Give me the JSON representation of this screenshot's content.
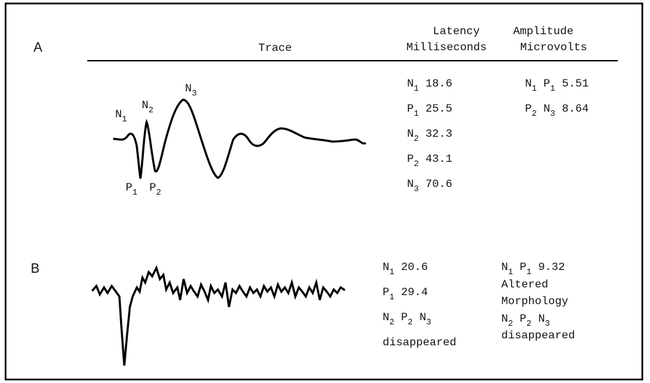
{
  "header": {
    "trace": "Trace",
    "latency": [
      "Latency",
      "Milliseconds"
    ],
    "amplitude": [
      "Amplitude",
      "Microvolts"
    ]
  },
  "panels": [
    {
      "label": "A",
      "trace_labels": [
        {
          "p": "N",
          "s": "1"
        },
        {
          "p": "N",
          "s": "2"
        },
        {
          "p": "N",
          "s": "3"
        },
        {
          "p": "P",
          "s": "1"
        },
        {
          "p": "P",
          "s": "2"
        }
      ],
      "latency": [
        {
          "peaks": [
            {
              "p": "N",
              "s": "1"
            }
          ],
          "value": 18.6
        },
        {
          "peaks": [
            {
              "p": "P",
              "s": "1"
            }
          ],
          "value": 25.5
        },
        {
          "peaks": [
            {
              "p": "N",
              "s": "2"
            }
          ],
          "value": 32.3
        },
        {
          "peaks": [
            {
              "p": "P",
              "s": "2"
            }
          ],
          "value": 43.1
        },
        {
          "peaks": [
            {
              "p": "N",
              "s": "3"
            }
          ],
          "value": 70.6
        }
      ],
      "amplitude": [
        {
          "peaks": [
            {
              "p": "N",
              "s": "1"
            },
            {
              "p": "P",
              "s": "1"
            }
          ],
          "value": 5.51
        },
        {
          "peaks": [
            {
              "p": "P",
              "s": "2"
            },
            {
              "p": "N",
              "s": "3"
            }
          ],
          "value": 8.64
        }
      ]
    },
    {
      "label": "B",
      "latency": [
        {
          "peaks": [
            {
              "p": "N",
              "s": "1"
            }
          ],
          "value": 20.6
        },
        {
          "peaks": [
            {
              "p": "P",
              "s": "1"
            }
          ],
          "value": 29.4
        },
        {
          "peaks": [
            {
              "p": "N",
              "s": "2"
            },
            {
              "p": "P",
              "s": "2"
            },
            {
              "p": "N",
              "s": "3"
            }
          ]
        },
        {
          "note": "disappeared"
        }
      ],
      "amplitude": [
        {
          "peaks": [
            {
              "p": "N",
              "s": "1"
            },
            {
              "p": "P",
              "s": "1"
            }
          ],
          "value": 9.32
        },
        {
          "note": "Altered"
        },
        {
          "note": "Morphology"
        },
        {
          "peaks": [
            {
              "p": "N",
              "s": "2"
            },
            {
              "p": "P",
              "s": "2"
            },
            {
              "p": "N",
              "s": "3"
            }
          ]
        },
        {
          "note": "disappeared"
        }
      ]
    }
  ]
}
